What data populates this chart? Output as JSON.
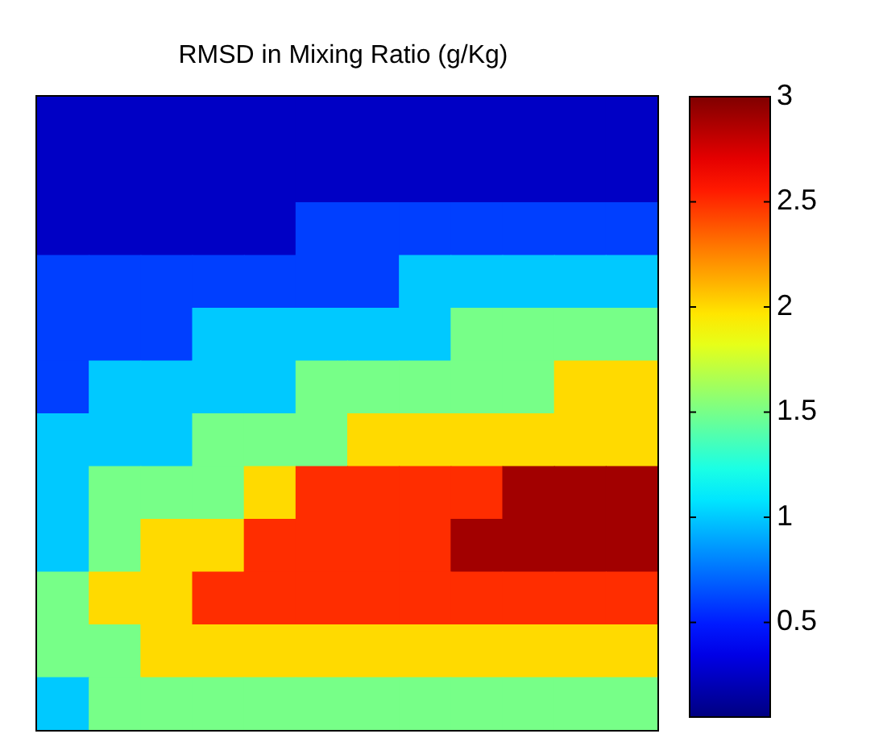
{
  "chart_data": {
    "type": "heatmap",
    "title": "RMSD in Mixing Ratio (g/Kg)",
    "categories": [
      null,
      null,
      null,
      null,
      null,
      null,
      null,
      null,
      null,
      null,
      null,
      null
    ],
    "y_categories": [
      null,
      null,
      null,
      null,
      null,
      null,
      null,
      null,
      null,
      null,
      null,
      null
    ],
    "cells": [
      [
        0.25,
        0.25,
        0.25,
        0.25,
        0.25,
        0.25,
        0.25,
        0.25,
        0.25,
        0.25,
        0.25,
        0.25
      ],
      [
        0.25,
        0.25,
        0.25,
        0.25,
        0.25,
        0.25,
        0.25,
        0.25,
        0.25,
        0.25,
        0.25,
        0.25
      ],
      [
        0.25,
        0.25,
        0.25,
        0.25,
        0.25,
        0.6,
        0.6,
        0.6,
        0.6,
        0.6,
        0.6,
        0.6
      ],
      [
        0.6,
        0.6,
        0.6,
        0.6,
        0.6,
        0.6,
        0.6,
        1.0,
        1.0,
        1.0,
        1.0,
        1.0
      ],
      [
        0.6,
        0.6,
        0.6,
        1.0,
        1.0,
        1.0,
        1.0,
        1.0,
        1.5,
        1.5,
        1.5,
        1.5
      ],
      [
        0.6,
        1.0,
        1.0,
        1.0,
        1.0,
        1.5,
        1.5,
        1.5,
        1.5,
        1.5,
        2.0,
        2.0
      ],
      [
        1.0,
        1.0,
        1.0,
        1.5,
        1.5,
        1.5,
        2.0,
        2.0,
        2.0,
        2.0,
        2.0,
        2.0
      ],
      [
        1.0,
        1.5,
        1.5,
        1.5,
        2.0,
        2.5,
        2.5,
        2.5,
        2.5,
        2.9,
        2.9,
        2.9
      ],
      [
        1.0,
        1.5,
        2.0,
        2.0,
        2.5,
        2.5,
        2.5,
        2.5,
        2.9,
        2.9,
        2.9,
        2.9
      ],
      [
        1.5,
        2.0,
        2.0,
        2.5,
        2.5,
        2.5,
        2.5,
        2.5,
        2.5,
        2.5,
        2.5,
        2.5
      ],
      [
        1.5,
        1.5,
        2.0,
        2.0,
        2.0,
        2.0,
        2.0,
        2.0,
        2.0,
        2.0,
        2.0,
        2.0
      ],
      [
        1.0,
        1.5,
        1.5,
        1.5,
        1.5,
        1.5,
        1.5,
        1.5,
        1.5,
        1.5,
        1.5,
        1.5
      ]
    ],
    "clim": [
      0.05,
      3
    ],
    "cticks": [
      0.5,
      1,
      1.5,
      2,
      2.5,
      3
    ]
  }
}
